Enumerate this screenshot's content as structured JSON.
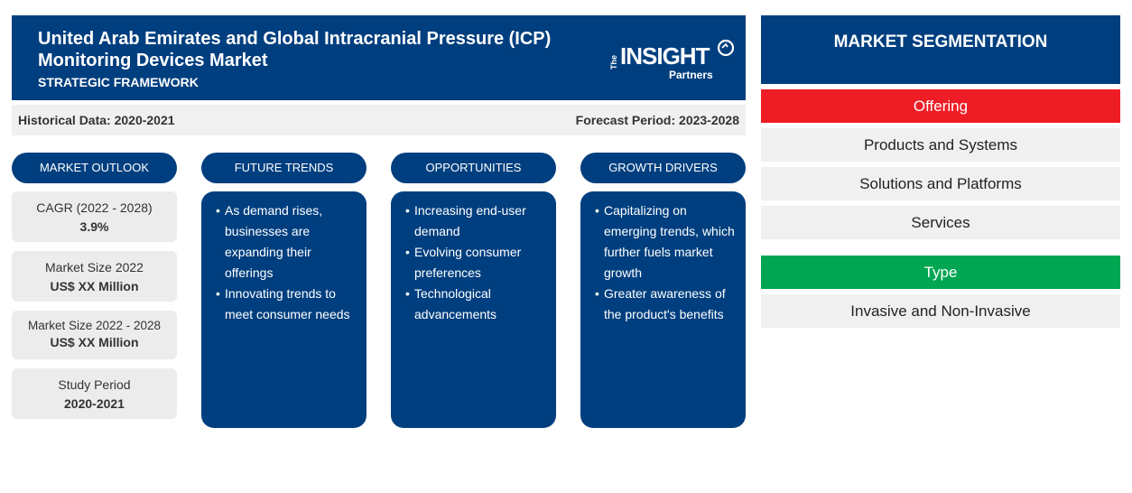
{
  "header": {
    "title": "United Arab Emirates and Global Intracranial Pressure (ICP) Monitoring Devices Market",
    "subtitle": "STRATEGIC FRAMEWORK",
    "logo": {
      "the": "The",
      "insight": "INSIGHT",
      "partners": "Partners"
    }
  },
  "databar": {
    "historical": "Historical Data: 2020-2021",
    "forecast": "Forecast Period: 2023-2028"
  },
  "columns": {
    "outlook": "MARKET OUTLOOK",
    "trends": "FUTURE TRENDS",
    "opportunities": "OPPORTUNITIES",
    "drivers": "GROWTH DRIVERS"
  },
  "outlook": [
    {
      "label": "CAGR (2022 - 2028)",
      "value": "3.9%"
    },
    {
      "label": "Market Size 2022",
      "value": "US$ XX Million"
    },
    {
      "label": "Market Size 2022 - 2028",
      "value": "US$ XX Million"
    },
    {
      "label": "Study Period",
      "value": "2020-2021"
    }
  ],
  "trends": [
    "As demand rises, businesses are expanding their offerings",
    "Innovating trends to meet consumer needs"
  ],
  "opportunities": [
    "Increasing end-user demand",
    "Evolving consumer preferences",
    "Technological advancements"
  ],
  "drivers": [
    "Capitalizing on emerging trends, which further fuels market growth",
    "Greater awareness of the product's benefits"
  ],
  "segmentation": {
    "title": "MARKET SEGMENTATION",
    "categories": [
      {
        "name": "Offering",
        "color": "#ee1c25",
        "items": [
          "Products and Systems",
          "Solutions and Platforms",
          "Services"
        ]
      },
      {
        "name": "Type",
        "color": "#00a651",
        "items": [
          "Invasive and Non-Invasive"
        ]
      }
    ]
  },
  "colors": {
    "primary": "#003f7f",
    "offering": "#ee1c25",
    "type": "#00a651",
    "panel": "#f0f0f0"
  }
}
